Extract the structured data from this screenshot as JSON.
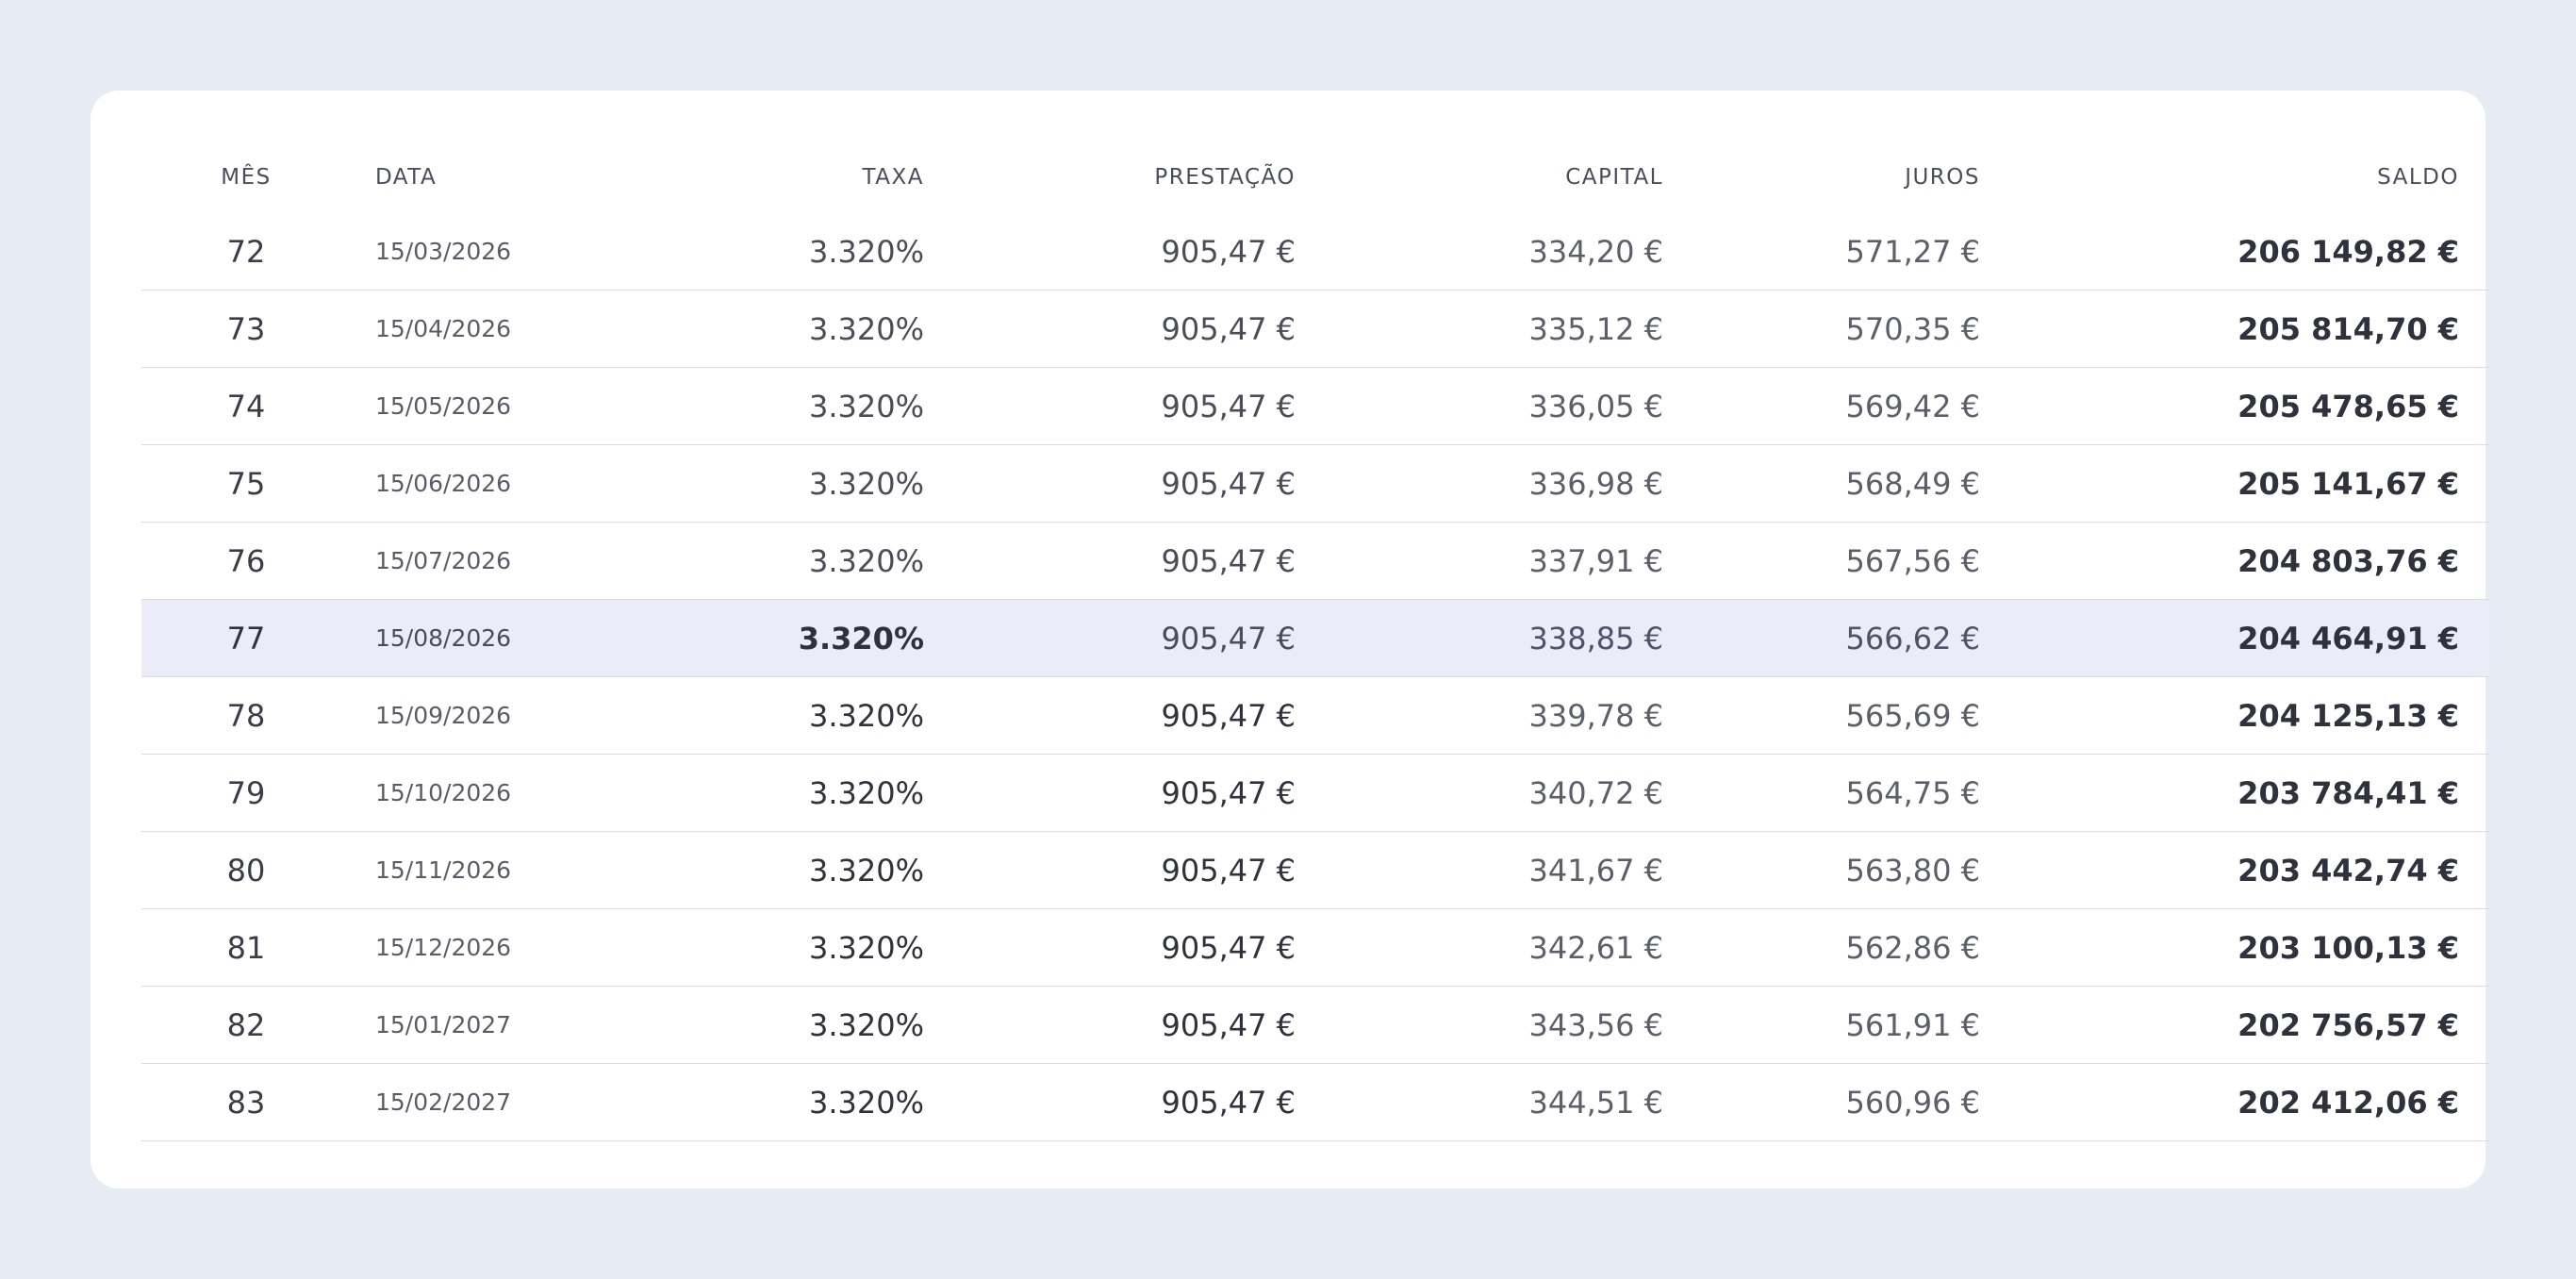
{
  "table": {
    "headers": {
      "mes": "MÊS",
      "data": "DATA",
      "taxa": "TAXA",
      "prestacao": "PRESTAÇÃO",
      "capital": "CAPITAL",
      "juros": "JUROS",
      "saldo": "SALDO"
    },
    "rows": [
      {
        "mes": "72",
        "data": "15/03/2026",
        "taxa": "3.320%",
        "prestacao": "905,47 €",
        "capital": "334,20 €",
        "juros": "571,27 €",
        "saldo": "206 149,82 €"
      },
      {
        "mes": "73",
        "data": "15/04/2026",
        "taxa": "3.320%",
        "prestacao": "905,47 €",
        "capital": "335,12 €",
        "juros": "570,35 €",
        "saldo": "205 814,70 €"
      },
      {
        "mes": "74",
        "data": "15/05/2026",
        "taxa": "3.320%",
        "prestacao": "905,47 €",
        "capital": "336,05 €",
        "juros": "569,42 €",
        "saldo": "205 478,65 €"
      },
      {
        "mes": "75",
        "data": "15/06/2026",
        "taxa": "3.320%",
        "prestacao": "905,47 €",
        "capital": "336,98 €",
        "juros": "568,49 €",
        "saldo": "205 141,67 €"
      },
      {
        "mes": "76",
        "data": "15/07/2026",
        "taxa": "3.320%",
        "prestacao": "905,47 €",
        "capital": "337,91 €",
        "juros": "567,56 €",
        "saldo": "204 803,76 €"
      },
      {
        "mes": "77",
        "data": "15/08/2026",
        "taxa": "3.320%",
        "prestacao": "905,47 €",
        "capital": "338,85 €",
        "juros": "566,62 €",
        "saldo": "204 464,91 €"
      },
      {
        "mes": "78",
        "data": "15/09/2026",
        "taxa": "3.320%",
        "prestacao": "905,47 €",
        "capital": "339,78 €",
        "juros": "565,69 €",
        "saldo": "204 125,13 €"
      },
      {
        "mes": "79",
        "data": "15/10/2026",
        "taxa": "3.320%",
        "prestacao": "905,47 €",
        "capital": "340,72 €",
        "juros": "564,75 €",
        "saldo": "203 784,41 €"
      },
      {
        "mes": "80",
        "data": "15/11/2026",
        "taxa": "3.320%",
        "prestacao": "905,47 €",
        "capital": "341,67 €",
        "juros": "563,80 €",
        "saldo": "203 442,74 €"
      },
      {
        "mes": "81",
        "data": "15/12/2026",
        "taxa": "3.320%",
        "prestacao": "905,47 €",
        "capital": "342,61 €",
        "juros": "562,86 €",
        "saldo": "203 100,13 €"
      },
      {
        "mes": "82",
        "data": "15/01/2027",
        "taxa": "3.320%",
        "prestacao": "905,47 €",
        "capital": "343,56 €",
        "juros": "561,91 €",
        "saldo": "202 756,57 €"
      },
      {
        "mes": "83",
        "data": "15/02/2027",
        "taxa": "3.320%",
        "prestacao": "905,47 €",
        "capital": "344,51 €",
        "juros": "560,96 €",
        "saldo": "202 412,06 €"
      }
    ],
    "highlighted_mes": "77"
  },
  "colors": {
    "page_background": "#e7ebf4",
    "card_background": "#ffffff",
    "highlight_row": "#ebecf7",
    "row_divider": "#d9dce2"
  }
}
